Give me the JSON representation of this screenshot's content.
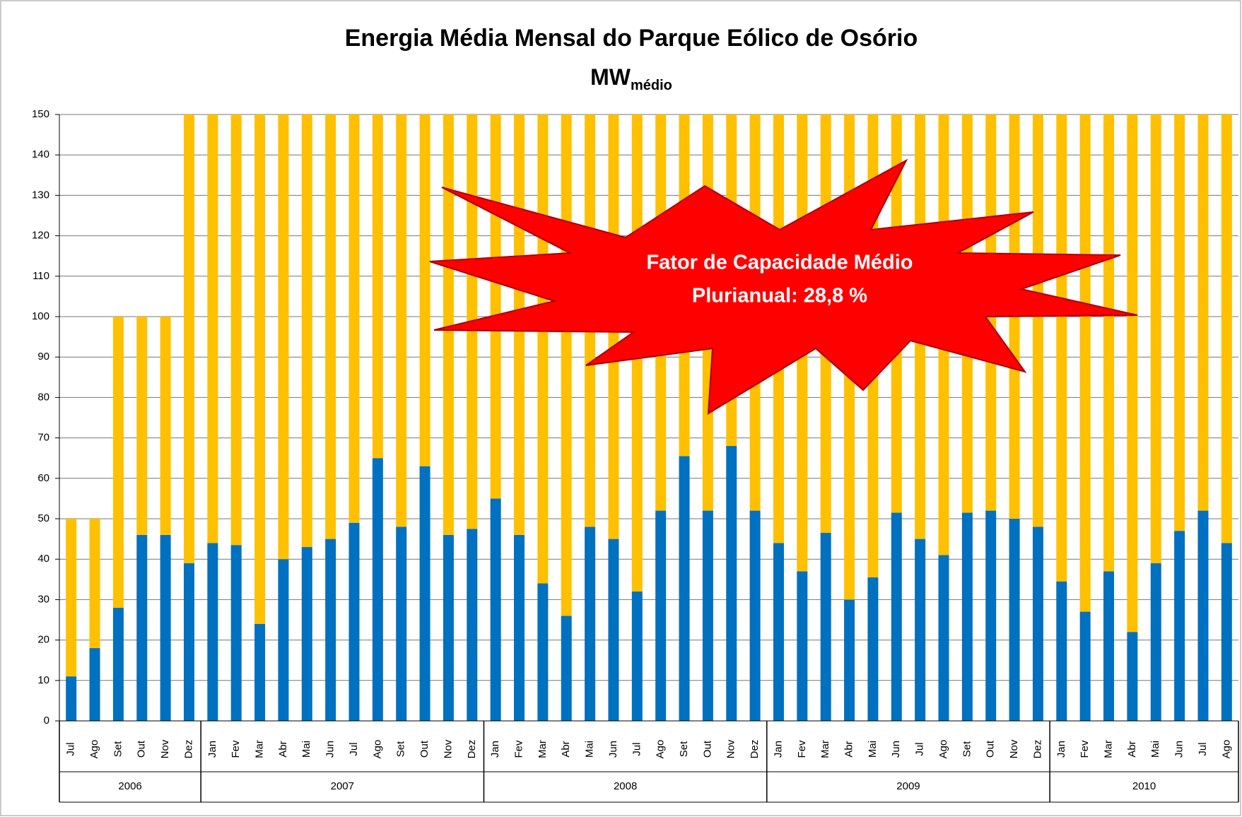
{
  "chart_data": {
    "type": "stacked_bar",
    "title": "Energia Média Mensal do Parque Eólico de Osório",
    "unit": "MW",
    "unit_sub": "médio",
    "annotation": [
      "Fator de Capacidade Médio",
      "Plurianual: 28,8 %"
    ],
    "categories": [
      "Jul",
      "Ago",
      "Set",
      "Out",
      "Nov",
      "Dez",
      "Jan",
      "Fev",
      "Mar",
      "Abr",
      "Mai",
      "Jun",
      "Jul",
      "Ago",
      "Set",
      "Out",
      "Nov",
      "Dez",
      "Jan",
      "Fev",
      "Mar",
      "Abr",
      "Mai",
      "Jun",
      "Jul",
      "Ago",
      "Set",
      "Out",
      "Nov",
      "Dez",
      "Jan",
      "Fev",
      "Mar",
      "Abr",
      "Mai",
      "Jun",
      "Jul",
      "Ago",
      "Set",
      "Out",
      "Nov",
      "Dez",
      "Jan",
      "Fev",
      "Mar",
      "Abr",
      "Mai",
      "Jun",
      "Jul",
      "Ago"
    ],
    "years": [
      "2006",
      "2007",
      "2008",
      "2009",
      "2010"
    ],
    "series": [
      {
        "color": "#0070c0",
        "values": [
          11,
          18,
          28,
          46,
          46,
          39,
          44,
          43.5,
          24,
          40,
          43,
          45,
          49,
          65,
          48,
          63,
          46,
          47.5,
          55,
          46,
          34,
          26,
          48,
          45,
          32,
          52,
          65.5,
          52,
          68,
          52,
          44,
          37,
          46.5,
          30,
          35.5,
          51.5,
          45,
          41,
          51.5,
          52,
          50,
          48,
          34.5,
          27,
          37,
          22,
          39,
          47,
          52,
          44
        ]
      },
      {
        "color": "#ffc000",
        "values": [
          39,
          32,
          72,
          54,
          54,
          111,
          106,
          106.5,
          126,
          110,
          107,
          105,
          101,
          85,
          102,
          87,
          104,
          102.5,
          95,
          104,
          116,
          124,
          102,
          105,
          118,
          98,
          84.5,
          98,
          82,
          98,
          106,
          113,
          103.5,
          120,
          114.5,
          98.5,
          105,
          109,
          98.5,
          98,
          100,
          102,
          115.5,
          123,
          113,
          128,
          111,
          103,
          98,
          106
        ]
      }
    ],
    "ylim": [
      0,
      150
    ],
    "yticks": [
      0,
      10,
      20,
      30,
      40,
      50,
      60,
      70,
      80,
      90,
      100,
      110,
      120,
      130,
      140,
      150
    ],
    "grid": true
  }
}
